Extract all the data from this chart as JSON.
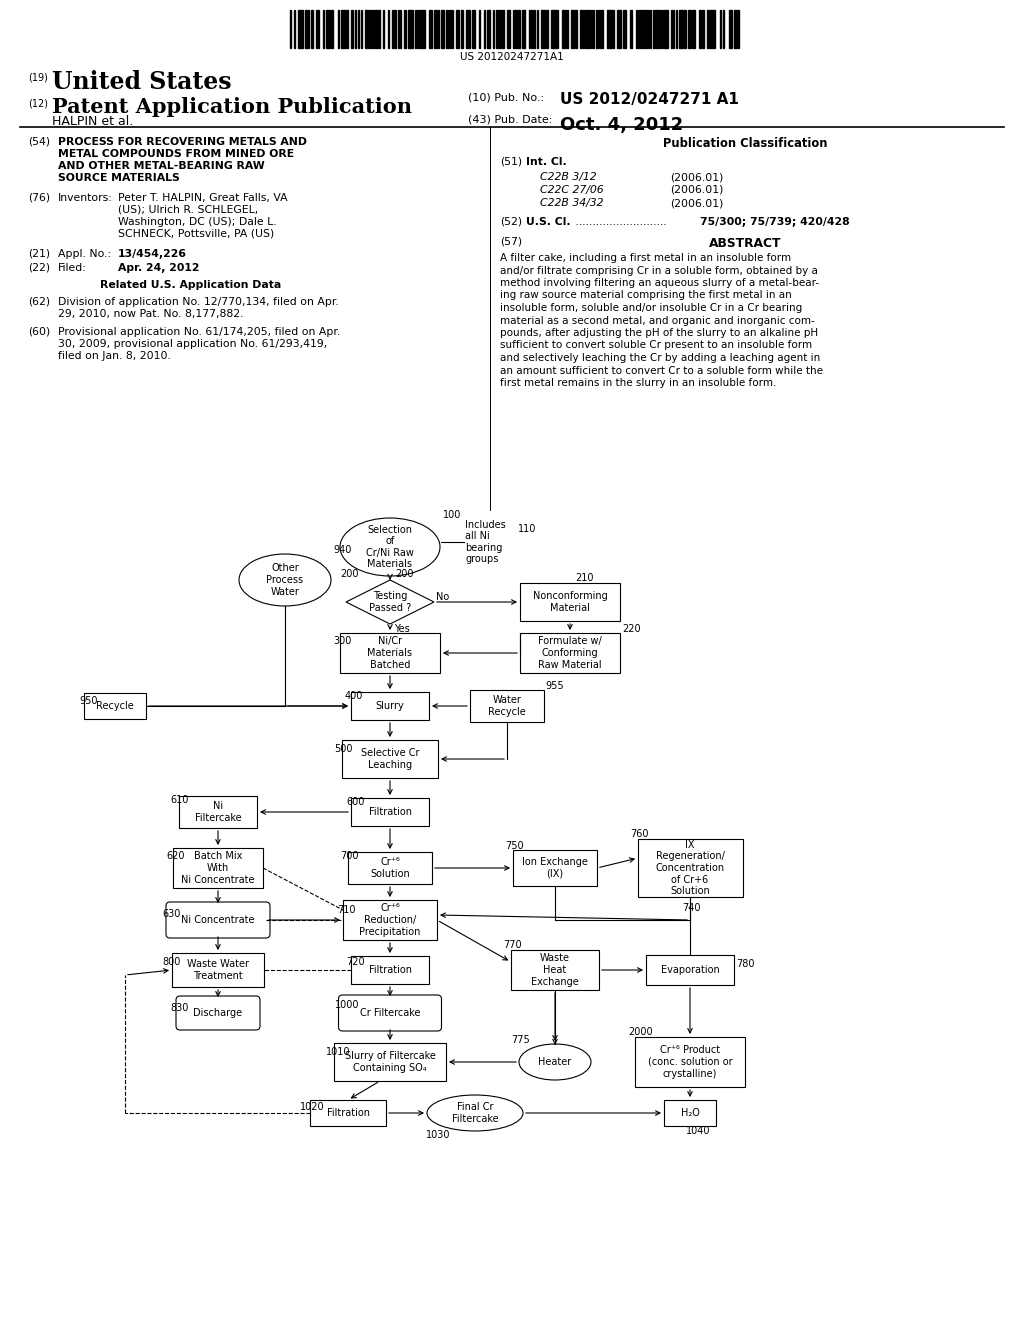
{
  "bg": "#ffffff",
  "barcode_text": "US 20120247271A1",
  "abstract_lines": [
    "A filter cake, including a first metal in an insoluble form",
    "and/or filtrate comprising Cr in a soluble form, obtained by a",
    "method involving filtering an aqueous slurry of a metal-bear-",
    "ing raw source material comprising the first metal in an",
    "insoluble form, soluble and/or insoluble Cr in a Cr bearing",
    "material as a second metal, and organic and inorganic com-",
    "pounds, after adjusting the pH of the slurry to an alkaline pH",
    "sufficient to convert soluble Cr present to an insoluble form",
    "and selectively leaching the Cr by adding a leaching agent in",
    "an amount sufficient to convert Cr to a soluble form while the",
    "first metal remains in the slurry in an insoluble form."
  ]
}
